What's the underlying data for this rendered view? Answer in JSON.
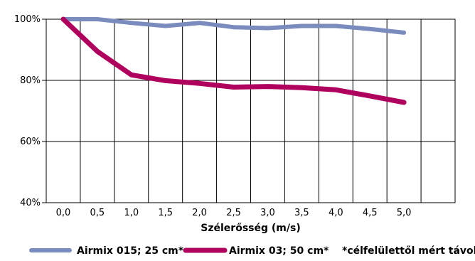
{
  "chart_data": {
    "type": "line",
    "xlabel": "Szélerősség (m/s)",
    "ylabel": "",
    "x": [
      0.0,
      0.5,
      1.0,
      1.5,
      2.0,
      2.5,
      3.0,
      3.5,
      4.0,
      4.5,
      5.0
    ],
    "x_tick_labels": [
      "0,0",
      "0,5",
      "1,0",
      "1,5",
      "2,0",
      "2,5",
      "3,0",
      "3,5",
      "4,0",
      "4,5",
      "5,0"
    ],
    "y_tick_labels": [
      "40%",
      "60%",
      "80%",
      "100%"
    ],
    "ylim": [
      40,
      100
    ],
    "grid": true,
    "legend_position": "bottom",
    "series": [
      {
        "name": "Airmix 015; 25 cm*",
        "color": "#7a8bbd",
        "values": [
          100,
          100,
          98.8,
          97.8,
          98.8,
          97.4,
          97.1,
          97.8,
          97.8,
          96.8,
          95.6
        ]
      },
      {
        "name": "Airmix 03; 50 cm*",
        "color": "#b0005e",
        "values": [
          100,
          89.5,
          81.8,
          79.9,
          79,
          77.8,
          78,
          77.6,
          76.9,
          74.9,
          72.8
        ]
      }
    ],
    "annotation": "*célfelülettől mért távolság"
  }
}
